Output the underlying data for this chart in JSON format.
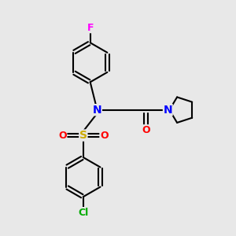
{
  "background_color": "#e8e8e8",
  "bond_color": "#000000",
  "bond_width": 1.5,
  "atom_colors": {
    "F": "#ff00ff",
    "N": "#0000ff",
    "S": "#ccaa00",
    "O": "#ff0000",
    "Cl": "#00aa00",
    "C": "#000000"
  },
  "figsize": [
    3.0,
    3.0
  ],
  "dpi": 100,
  "xlim": [
    0,
    10
  ],
  "ylim": [
    0,
    10
  ]
}
